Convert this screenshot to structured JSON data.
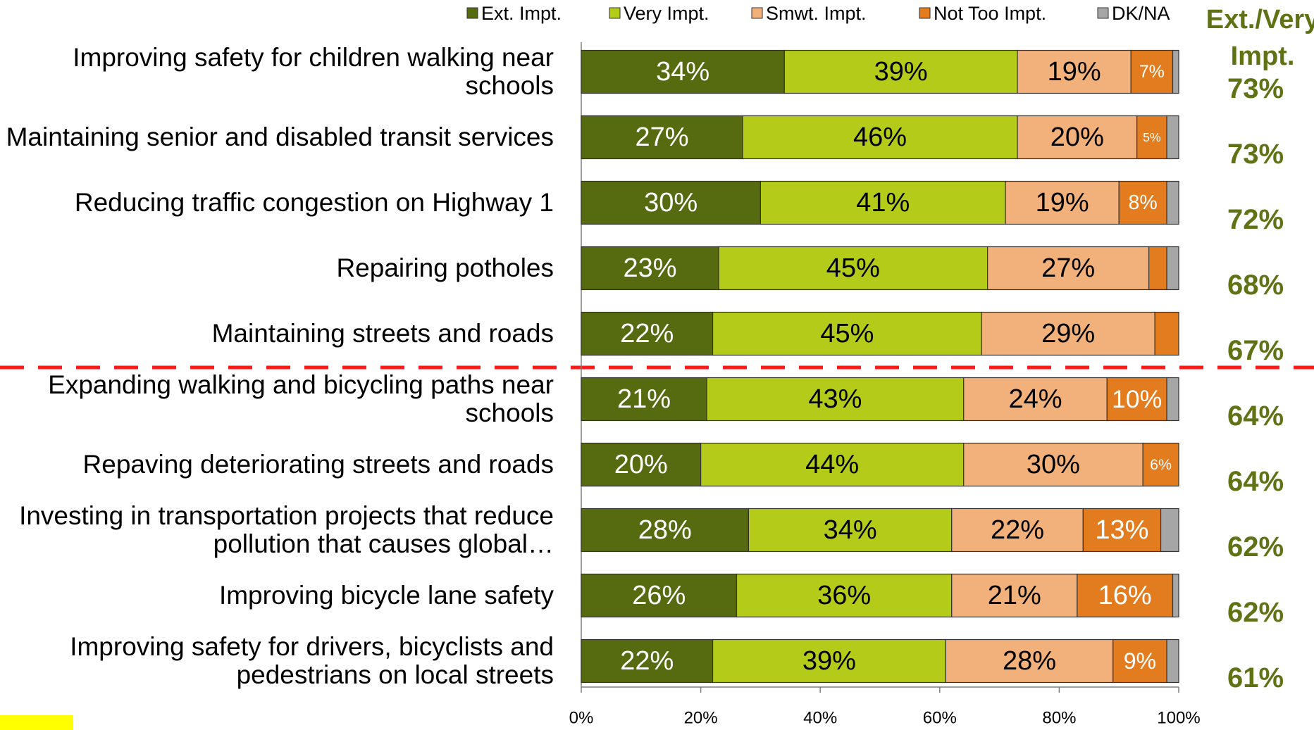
{
  "chart_data": {
    "type": "stacked_bar_horizontal",
    "categories": [
      "Improving safety for children walking near schools",
      "Maintaining senior and disabled transit services",
      "Reducing traffic congestion on Highway 1",
      "Repairing potholes",
      "Maintaining streets and roads",
      "Expanding walking and bicycling paths near schools",
      "Repaving deteriorating streets and roads",
      "Investing in transportation projects that reduce pollution that causes global…",
      "Improving bicycle lane safety",
      "Improving safety for drivers, bicyclists and pedestrians on local streets"
    ],
    "series": [
      {
        "name": "Ext. Impt.",
        "color": "#566a10",
        "values": [
          34,
          27,
          30,
          23,
          22,
          21,
          20,
          28,
          26,
          22
        ],
        "value_labels": [
          "34%",
          "27%",
          "30%",
          "23%",
          "22%",
          "21%",
          "20%",
          "28%",
          "26%",
          "22%"
        ]
      },
      {
        "name": "Very Impt.",
        "color": "#b4cb19",
        "values": [
          39,
          46,
          41,
          45,
          45,
          43,
          44,
          34,
          36,
          39
        ],
        "value_labels": [
          "39%",
          "46%",
          "41%",
          "45%",
          "45%",
          "43%",
          "44%",
          "34%",
          "36%",
          "39%"
        ]
      },
      {
        "name": "Smwt. Impt.",
        "color": "#f2b07a",
        "values": [
          19,
          20,
          19,
          27,
          29,
          24,
          30,
          22,
          21,
          28
        ],
        "value_labels": [
          "19%",
          "20%",
          "19%",
          "27%",
          "29%",
          "24%",
          "30%",
          "22%",
          "21%",
          "28%"
        ]
      },
      {
        "name": "Not Too Impt.",
        "color": "#e27c1e",
        "values": [
          7,
          5,
          8,
          3,
          4,
          10,
          6,
          13,
          16,
          9
        ],
        "value_labels": [
          "7%",
          "5%",
          "8%",
          null,
          null,
          "10%",
          "6%",
          "13%",
          "16%",
          "9%"
        ]
      },
      {
        "name": "DK/NA",
        "color": "#a6a6a6",
        "values": [
          1,
          2,
          2,
          2,
          0,
          2,
          0,
          3,
          1,
          2
        ]
      }
    ],
    "xlim": [
      0,
      100
    ],
    "xticks": [
      {
        "value": 0,
        "label": "0%"
      },
      {
        "value": 20,
        "label": "20%"
      },
      {
        "value": 40,
        "label": "40%"
      },
      {
        "value": 60,
        "label": "60%"
      },
      {
        "value": 80,
        "label": "80%"
      },
      {
        "value": 100,
        "label": "100%"
      }
    ],
    "legend": "top",
    "totals": {
      "name": "Ext./Very Impt.",
      "color": "#5f7315",
      "values": [
        73,
        73,
        72,
        68,
        67,
        64,
        64,
        62,
        62,
        61
      ],
      "value_labels": [
        "73%",
        "73%",
        "72%",
        "68%",
        "67%",
        "64%",
        "64%",
        "62%",
        "62%",
        "61%"
      ]
    }
  }
}
